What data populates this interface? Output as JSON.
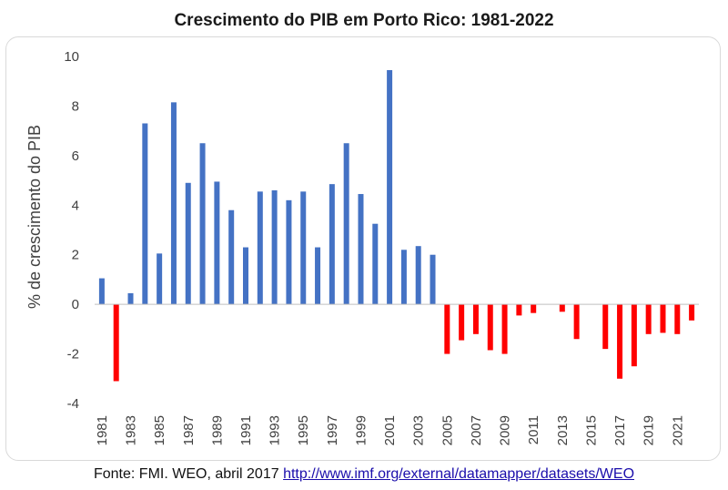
{
  "chart_data": {
    "type": "bar",
    "title": "Crescimento do PIB em Porto Rico: 1981-2022",
    "xlabel": "",
    "ylabel": "% de crescimento do PIB",
    "ylim": [
      -4,
      10
    ],
    "yticks": [
      -4,
      -2,
      0,
      2,
      4,
      6,
      8,
      10
    ],
    "grid": false,
    "legend": "none",
    "positive_color": "#4472c4",
    "negative_color": "#ff0000",
    "categories": [
      "1981",
      "1982",
      "1983",
      "1984",
      "1985",
      "1986",
      "1987",
      "1988",
      "1989",
      "1990",
      "1991",
      "1992",
      "1993",
      "1994",
      "1995",
      "1996",
      "1997",
      "1998",
      "1999",
      "2000",
      "2001",
      "2002",
      "2003",
      "2004",
      "2005",
      "2006",
      "2007",
      "2008",
      "2009",
      "2010",
      "2011",
      "2012",
      "2013",
      "2014",
      "2015",
      "2016",
      "2017",
      "2018",
      "2019",
      "2020",
      "2021",
      "2022"
    ],
    "tick_labels": [
      "1981",
      "1983",
      "1985",
      "1987",
      "1989",
      "1991",
      "1993",
      "1995",
      "1997",
      "1999",
      "2001",
      "2003",
      "2005",
      "2007",
      "2009",
      "2011",
      "2013",
      "2015",
      "2017",
      "2019",
      "2021"
    ],
    "values": [
      1.05,
      -3.1,
      0.45,
      7.3,
      2.05,
      8.15,
      4.9,
      6.5,
      4.95,
      3.8,
      2.3,
      4.55,
      4.6,
      4.2,
      4.55,
      2.3,
      4.85,
      6.5,
      4.45,
      3.25,
      9.45,
      2.2,
      2.35,
      2.0,
      -2.0,
      -1.45,
      -1.2,
      -1.85,
      -2.0,
      -0.45,
      -0.35,
      0,
      -0.3,
      -1.4,
      0,
      -1.8,
      -3.0,
      -2.5,
      -1.2,
      -1.15,
      -1.2,
      -0.65
    ]
  },
  "footer": {
    "source_text": "Fonte: FMI. WEO, abril 2017",
    "link_text": "http://www.imf.org/external/datamapper/datasets/WEO"
  }
}
